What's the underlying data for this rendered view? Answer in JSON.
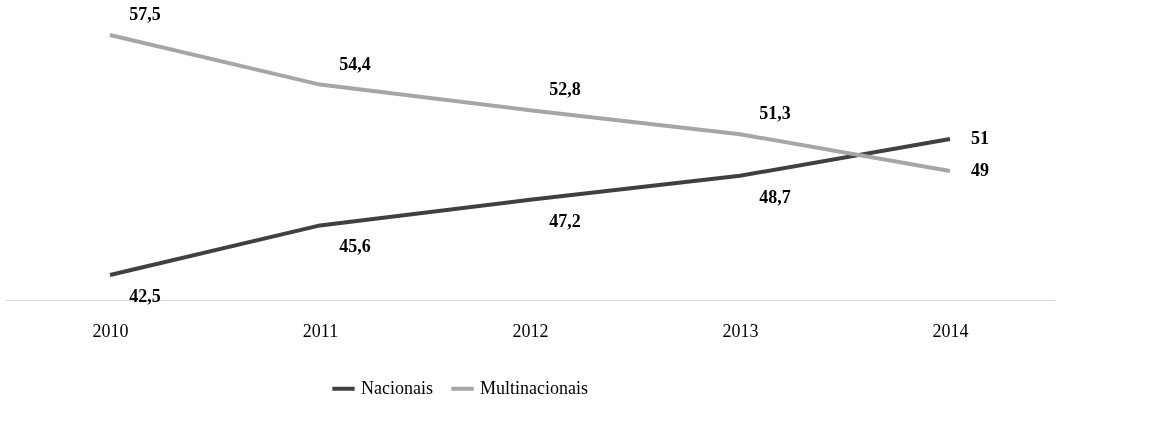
{
  "chart_data": {
    "type": "line",
    "categories": [
      "2010",
      "2011",
      "2012",
      "2013",
      "2014"
    ],
    "series": [
      {
        "name": "Nacionais",
        "color": "#404040",
        "values": [
          42.5,
          45.6,
          47.2,
          48.7,
          51
        ],
        "value_labels": [
          "42,5",
          "45,6",
          "47,2",
          "48,7",
          "51"
        ]
      },
      {
        "name": "Multinacionais",
        "color": "#a6a6a6",
        "values": [
          57.5,
          54.4,
          52.8,
          51.3,
          49
        ],
        "value_labels": [
          "57,5",
          "54,4",
          "52,8",
          "51,3",
          "49"
        ]
      }
    ],
    "legend": "bottom",
    "grid": false,
    "marker": "none",
    "line_style": "solid",
    "tick_labels": "x"
  }
}
